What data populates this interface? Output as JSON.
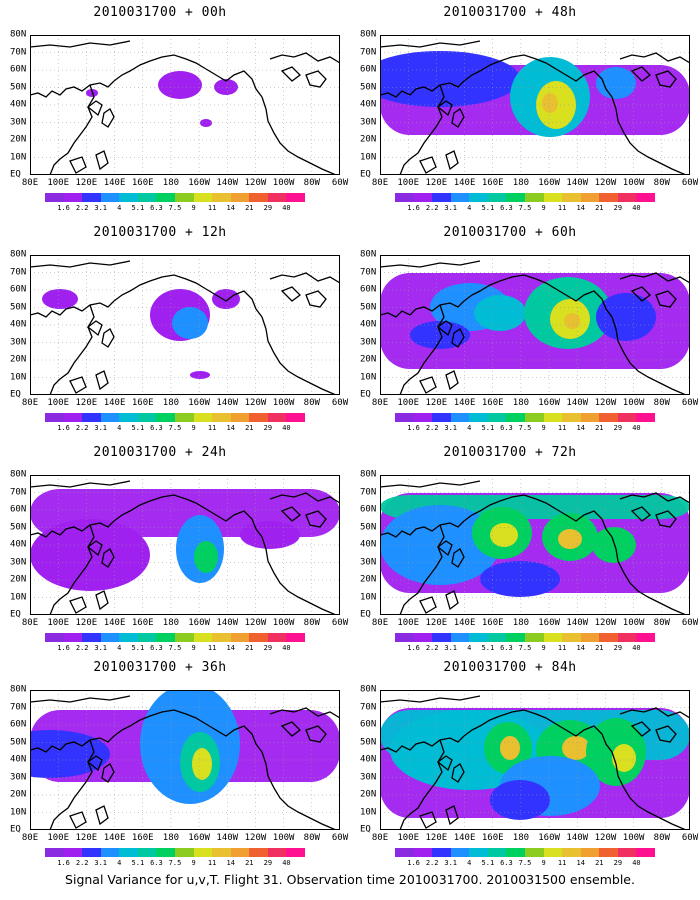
{
  "panels": [
    {
      "title": "2010031700 + 00h"
    },
    {
      "title": "2010031700 + 48h"
    },
    {
      "title": "2010031700 + 12h"
    },
    {
      "title": "2010031700 + 60h"
    },
    {
      "title": "2010031700 + 24h"
    },
    {
      "title": "2010031700 + 72h"
    },
    {
      "title": "2010031700 + 36h"
    },
    {
      "title": "2010031700 + 84h"
    }
  ],
  "latitude_labels": [
    "80N",
    "70N",
    "60N",
    "50N",
    "40N",
    "30N",
    "20N",
    "10N",
    "EQ"
  ],
  "longitude_labels": [
    "80E",
    "100E",
    "120E",
    "140E",
    "160E",
    "180",
    "160W",
    "140W",
    "120W",
    "100W",
    "80W",
    "60W"
  ],
  "colorbar": {
    "colors": [
      "#8a2be2",
      "#a020f0",
      "#3333ff",
      "#1e90ff",
      "#00bcd4",
      "#00c8a0",
      "#00d060",
      "#8ccc20",
      "#d8e020",
      "#e8c030",
      "#f0a030",
      "#f06030",
      "#f03060",
      "#ff1090"
    ],
    "labels": [
      "1.6",
      "2.2",
      "3.1",
      "4",
      "5.1",
      "6.3",
      "7.5",
      "9",
      "11",
      "14",
      "21",
      "29",
      "40"
    ]
  },
  "footer": "Signal Variance for u,v,T. Flight 31. Observation time 2010031700. 2010031500 ensemble."
}
